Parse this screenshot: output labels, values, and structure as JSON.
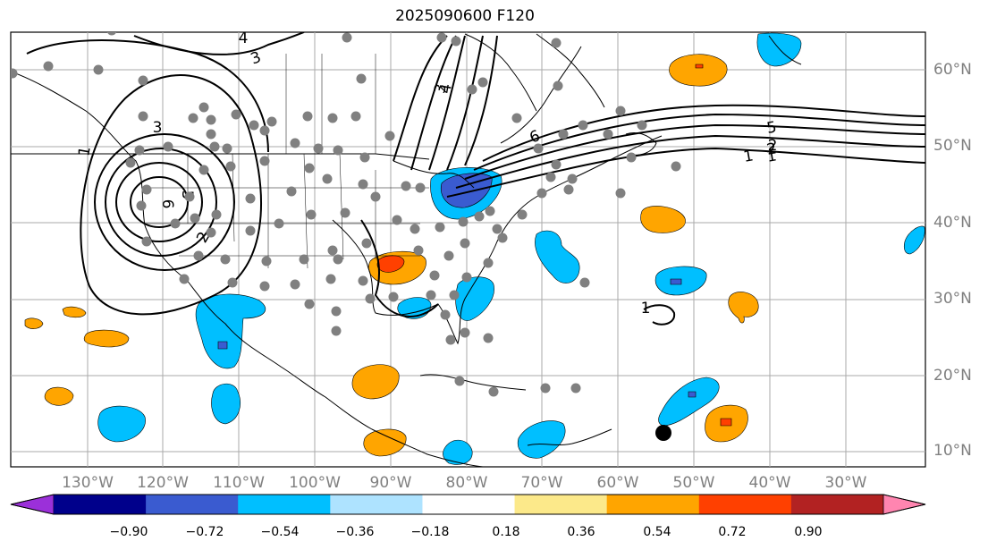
{
  "title": "2025090600 F120",
  "map": {
    "lat_labels": [
      "60°N",
      "50°N",
      "40°N",
      "30°N",
      "20°N",
      "10°N"
    ],
    "lon_labels": [
      "130°W",
      "120°W",
      "110°W",
      "100°W",
      "90°W",
      "80°W",
      "70°W",
      "60°W",
      "50°W",
      "40°W",
      "30°W"
    ],
    "contour_labels": [
      "1",
      "3",
      "3",
      "4",
      "5",
      "6",
      "2",
      "1",
      "2",
      "3",
      "4",
      "6",
      "5",
      "2",
      "1",
      "1"
    ],
    "storm_marker": "filled-circle"
  },
  "colorbar": {
    "tick_labels": [
      "−0.90",
      "−0.72",
      "−0.54",
      "−0.36",
      "−0.18",
      "0.18",
      "0.36",
      "0.54",
      "0.72",
      "0.90"
    ],
    "colors": [
      "#9b30d9",
      "#00008b",
      "#3a5bd0",
      "#00bfff",
      "#aee3ff",
      "#ffffff",
      "#fce98a",
      "#ffa500",
      "#ff4000",
      "#b22222",
      "#ff85b0"
    ],
    "extend": "both"
  },
  "colors": {
    "station_dot": "#808080",
    "contour": "#000000",
    "grid": "#aaaaaa",
    "label_gray": "#808080"
  }
}
